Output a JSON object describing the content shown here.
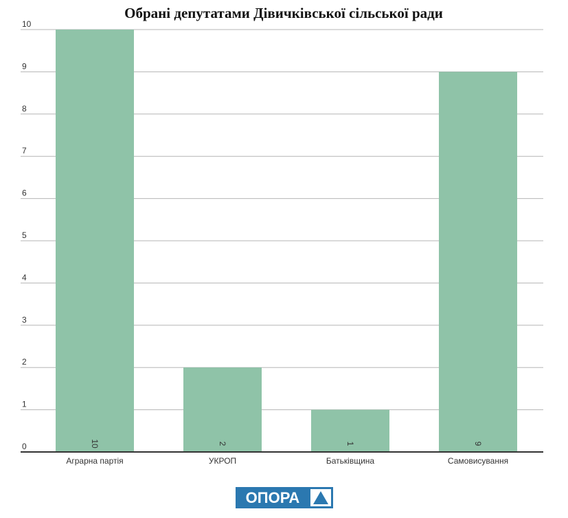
{
  "chart_data": {
    "type": "bar",
    "title": "Обрані депутатами Дівичківської сільської ради",
    "categories": [
      "Аграрна партія",
      "УКРОП",
      "Батьківщина",
      "Самовисування"
    ],
    "values": [
      10,
      2,
      1,
      9
    ],
    "color": "#8fc3a8",
    "ylim": [
      0,
      10
    ],
    "yticks": [
      0,
      1,
      2,
      3,
      4,
      5,
      6,
      7,
      8,
      9,
      10
    ],
    "grid": true
  },
  "logo": "ОПОРА"
}
